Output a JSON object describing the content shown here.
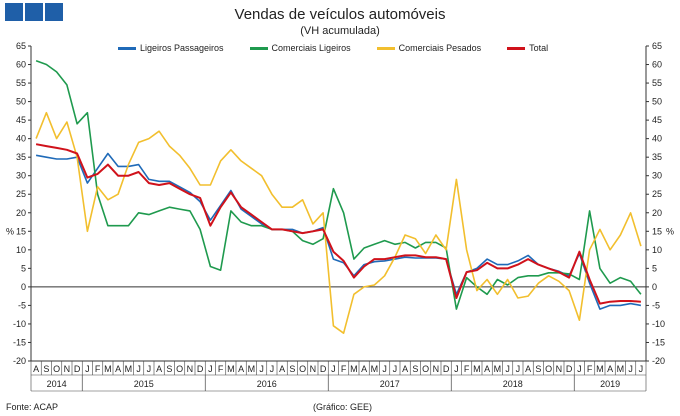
{
  "brand": {
    "color": "#1f5fa8"
  },
  "header": {
    "title": "Vendas de veículos automóveis",
    "subtitle": "(VH acumulada)"
  },
  "footer": {
    "source": "Fonte: ACAP",
    "credit": "(Gráfico: GEE)"
  },
  "chart_data": {
    "type": "line",
    "title": "Vendas de veículos automóveis",
    "subtitle": "(VH acumulada)",
    "ylabel_left": "%",
    "ylabel_right": "%",
    "ylim": [
      -20,
      65
    ],
    "yticks": [
      -20,
      -15,
      -10,
      -5,
      0,
      5,
      10,
      15,
      20,
      25,
      30,
      35,
      40,
      45,
      50,
      55,
      60,
      65
    ],
    "grid": false,
    "legend_position": "top",
    "x_month_labels": [
      "A",
      "S",
      "O",
      "N",
      "D",
      "J",
      "F",
      "M",
      "A",
      "M",
      "J",
      "J",
      "A",
      "S",
      "O",
      "N",
      "D",
      "J",
      "F",
      "M",
      "A",
      "M",
      "J",
      "J",
      "A",
      "S",
      "O",
      "N",
      "D",
      "J",
      "F",
      "M",
      "A",
      "M",
      "J",
      "J",
      "A",
      "S",
      "O",
      "N",
      "D",
      "J",
      "F",
      "M",
      "A",
      "M",
      "J",
      "J",
      "A",
      "S",
      "O",
      "N",
      "D",
      "J",
      "F",
      "M",
      "A",
      "M",
      "J",
      "J"
    ],
    "year_groups": [
      {
        "label": "2014",
        "start": 0,
        "end": 4
      },
      {
        "label": "2015",
        "start": 5,
        "end": 16
      },
      {
        "label": "2016",
        "start": 17,
        "end": 28
      },
      {
        "label": "2017",
        "start": 29,
        "end": 40
      },
      {
        "label": "2018",
        "start": 41,
        "end": 52
      },
      {
        "label": "2019",
        "start": 53,
        "end": 59
      }
    ],
    "series": [
      {
        "name": "Ligeiros Passageiros",
        "color": "#1f6ab8",
        "values": [
          35.5,
          35.0,
          34.5,
          34.5,
          35,
          28,
          32,
          36,
          32.5,
          32.5,
          33,
          29,
          28.5,
          28.5,
          27,
          25.5,
          23,
          18,
          22,
          26,
          21,
          19,
          17,
          15.5,
          15.5,
          15.5,
          14.5,
          15,
          16,
          7.5,
          6.5,
          3,
          6,
          6.8,
          7,
          7.5,
          8,
          7.8,
          7.8,
          7.8,
          7.5,
          -2,
          4,
          5,
          7.5,
          6,
          6,
          7,
          8.5,
          6,
          5,
          4.2,
          3,
          9,
          1,
          -6,
          -5,
          -5,
          -4.5,
          -5
        ]
      },
      {
        "name": "Comerciais Ligeiros",
        "color": "#1f9a4e",
        "values": [
          61,
          60,
          58,
          54.5,
          44,
          47,
          25,
          16.5,
          16.5,
          16.5,
          20,
          19.5,
          20.5,
          21.5,
          21,
          20.5,
          15.5,
          5.5,
          4.5,
          20.5,
          17.5,
          16.5,
          16.5,
          15.5,
          15.5,
          15,
          12.5,
          11.5,
          13,
          26.5,
          20,
          7.5,
          10.5,
          11.5,
          12.5,
          11.5,
          12,
          10.5,
          12,
          12,
          10.5,
          -6,
          2.5,
          0,
          -2,
          2,
          0.5,
          2.5,
          3,
          3,
          3.8,
          3.8,
          3.5,
          2,
          20.5,
          5,
          1,
          2.5,
          1.5,
          -2
        ]
      },
      {
        "name": "Comerciais Pesados",
        "color": "#f2bf2e",
        "values": [
          40,
          47,
          40,
          44.5,
          35,
          15,
          27,
          23.5,
          25,
          33,
          39,
          40,
          42,
          38,
          35.5,
          32,
          27.5,
          27.5,
          34,
          37,
          34,
          32,
          30,
          25,
          21.5,
          21.5,
          23.5,
          17,
          20,
          -10.5,
          -12.5,
          -2,
          0,
          0.5,
          3,
          8,
          14,
          13,
          9,
          14,
          10,
          29,
          10,
          -1,
          2,
          -2,
          2,
          -3,
          -2.5,
          1,
          3,
          1.5,
          -1,
          -9,
          10,
          15.5,
          10,
          14,
          20,
          11
        ]
      },
      {
        "name": "Total",
        "color": "#d0121b",
        "values": [
          38.5,
          38,
          37.5,
          37,
          36,
          29.5,
          30.5,
          33,
          30,
          30,
          31,
          28,
          27.5,
          28,
          26.5,
          25,
          24,
          16.5,
          21.5,
          25.5,
          21.5,
          19.5,
          17.5,
          15.5,
          15.5,
          15,
          14.5,
          15,
          15.5,
          9.5,
          7,
          2.5,
          5.5,
          7.5,
          7.5,
          8,
          8.5,
          8.5,
          8,
          8,
          7.5,
          -3,
          4,
          4.5,
          6.5,
          5,
          5,
          6,
          7.5,
          6,
          5,
          4,
          2.5,
          9.5,
          2,
          -4.5,
          -4,
          -3.8,
          -3.8,
          -4
        ]
      }
    ]
  }
}
